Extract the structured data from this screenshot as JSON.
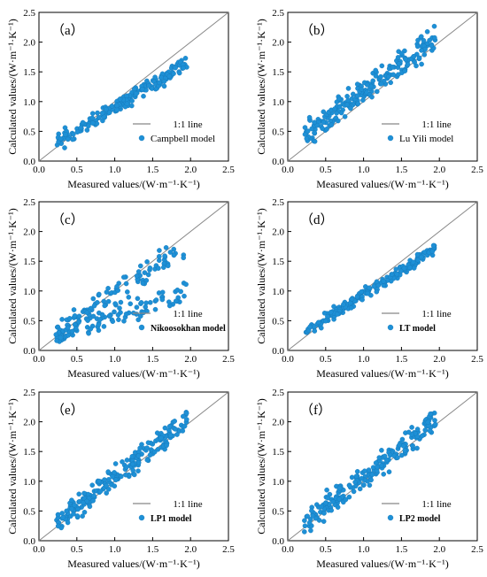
{
  "colors": {
    "point": "#1e90d6",
    "point_stroke": "#1577b8",
    "line": "#888888",
    "axis": "#000000"
  },
  "chart_data": [
    {
      "type": "scatter",
      "panel_label": "（a）",
      "xlabel": "Measured values/(W·m⁻¹·K⁻¹)",
      "ylabel": "Calculated values/(W·m⁻¹·K⁻¹)",
      "xlim": [
        0,
        2.5
      ],
      "ylim": [
        0,
        2.5
      ],
      "xticks": [
        "0.0",
        "0.5",
        "1.0",
        "1.5",
        "2.0",
        "2.5"
      ],
      "yticks": [
        "0.0",
        "0.5",
        "1.0",
        "1.5",
        "2.0",
        "2.5"
      ],
      "reference_line": "1:1 line",
      "series_name": "Campbell model",
      "legend_bold": false,
      "legend_position": "bottom-right",
      "trend": {
        "slope": 0.78,
        "intercept": 0.12,
        "spread": 0.12,
        "count": 190,
        "seed": 11
      }
    },
    {
      "type": "scatter",
      "panel_label": "（b）",
      "xlabel": "Measured values/(W·m⁻¹·K⁻¹)",
      "ylabel": "Calculated values/(W·m⁻¹·K⁻¹)",
      "xlim": [
        0,
        2.5
      ],
      "ylim": [
        0,
        2.5
      ],
      "xticks": [
        "0.0",
        "0.5",
        "1.0",
        "1.5",
        "2.0",
        "2.5"
      ],
      "yticks": [
        "0.0",
        "0.5",
        "1.0",
        "1.5",
        "2.0",
        "2.5"
      ],
      "reference_line": "1:1 line",
      "series_name": "Lu Yili model",
      "legend_bold": false,
      "legend_position": "bottom-right",
      "trend": {
        "slope": 0.92,
        "intercept": 0.25,
        "spread": 0.22,
        "count": 210,
        "seed": 23
      }
    },
    {
      "type": "scatter",
      "panel_label": "（c）",
      "xlabel": "Measured values/(W·m⁻¹·K⁻¹)",
      "ylabel": "Calculated values/(W·m⁻¹·K⁻¹)",
      "xlim": [
        0,
        2.5
      ],
      "ylim": [
        0,
        2.5
      ],
      "xticks": [
        "0.0",
        "0.5",
        "1.0",
        "1.5",
        "2.0",
        "2.5"
      ],
      "yticks": [
        "0.0",
        "0.5",
        "1.0",
        "1.5",
        "2.0",
        "2.5"
      ],
      "reference_line": "1:1 line",
      "series_name": "Nikoosokhan model",
      "legend_bold": true,
      "legend_position": "bottom-right",
      "trend": {
        "slope": 0.85,
        "intercept": 0.1,
        "spread": 0.18,
        "count": 200,
        "seed": 37,
        "split": true
      }
    },
    {
      "type": "scatter",
      "panel_label": "（d）",
      "xlabel": "Measured values/(W·m⁻¹·K⁻¹)",
      "ylabel": "Calculated values/(W·m⁻¹·K⁻¹)",
      "xlim": [
        0,
        2.5
      ],
      "ylim": [
        0,
        2.5
      ],
      "xticks": [
        "0.0",
        "0.5",
        "1.0",
        "1.5",
        "2.0",
        "2.5"
      ],
      "yticks": [
        "0.0",
        "0.5",
        "1.0",
        "1.5",
        "2.0",
        "2.5"
      ],
      "reference_line": "1:1 line",
      "series_name": "LT model",
      "legend_bold": true,
      "legend_position": "bottom-right",
      "trend": {
        "slope": 0.82,
        "intercept": 0.12,
        "spread": 0.09,
        "count": 200,
        "seed": 41
      }
    },
    {
      "type": "scatter",
      "panel_label": "（e）",
      "xlabel": "Measured values/(W·m⁻¹·K⁻¹)",
      "ylabel": "Calculated values/(W·m⁻¹·K⁻¹)",
      "xlim": [
        0,
        2.5
      ],
      "ylim": [
        0,
        2.5
      ],
      "xticks": [
        "0.0",
        "0.5",
        "1.0",
        "1.5",
        "2.0",
        "2.5"
      ],
      "yticks": [
        "0.0",
        "0.5",
        "1.0",
        "1.5",
        "2.0",
        "2.5"
      ],
      "reference_line": "1:1 line",
      "series_name": "LP1 model",
      "legend_bold": true,
      "legend_position": "bottom-right",
      "trend": {
        "slope": 1.0,
        "intercept": 0.08,
        "spread": 0.2,
        "count": 210,
        "seed": 53
      }
    },
    {
      "type": "scatter",
      "panel_label": "（f）",
      "xlabel": "Measured values/(W·m⁻¹·K⁻¹)",
      "ylabel": "Calculated values/(W·m⁻¹·K⁻¹)",
      "xlim": [
        0,
        2.5
      ],
      "ylim": [
        0,
        2.5
      ],
      "xticks": [
        "0.0",
        "0.5",
        "1.0",
        "1.5",
        "2.0",
        "2.5"
      ],
      "yticks": [
        "0.0",
        "0.5",
        "1.0",
        "1.5",
        "2.0",
        "2.5"
      ],
      "reference_line": "1:1 line",
      "series_name": "LP2 model",
      "legend_bold": true,
      "legend_position": "bottom-right",
      "trend": {
        "slope": 1.0,
        "intercept": 0.07,
        "spread": 0.2,
        "count": 210,
        "seed": 67
      }
    }
  ]
}
